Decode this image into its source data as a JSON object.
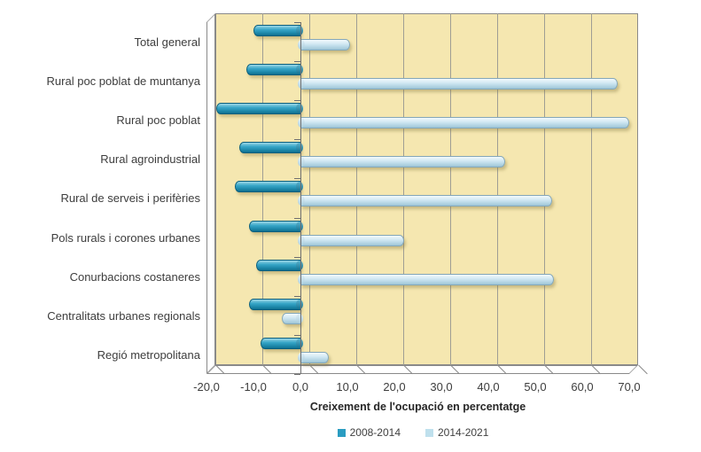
{
  "chart_data": {
    "type": "bar",
    "orientation": "horizontal",
    "style_3d": "cylinder",
    "title": "",
    "xlabel": "Creixement de l'ocupació en percentatge",
    "ylabel": "",
    "xlim": [
      -20,
      70
    ],
    "grid": true,
    "legend_position": "bottom",
    "plot_bg_color": "#F5E7B0",
    "grid_color": "#9f9e94",
    "frame_color": "#8a8a8a",
    "axis_line_color": "#6f6f6f",
    "text_color": "#3d3d3d",
    "x_ticks": [
      -20,
      -10,
      0,
      10,
      20,
      30,
      40,
      50,
      60,
      70
    ],
    "x_tick_labels": [
      "-20,0",
      "-10,0",
      "0,0",
      "10,0",
      "20,0",
      "30,0",
      "40,0",
      "50,0",
      "60,0",
      "70,0"
    ],
    "categories": [
      "Total general",
      "Rural poc poblat de muntanya",
      "Rural poc poblat",
      "Rural agroindustrial",
      "Rural de serveis i perifèries",
      "Pols rurals i corones urbanes",
      "Conurbacions costaneres",
      "Centralitats urbanes regionals",
      "Regió metropolitana"
    ],
    "series": [
      {
        "name": "2008-2014",
        "values": [
          -10.0,
          -11.5,
          -18.0,
          -13.0,
          -14.0,
          -11.0,
          -9.5,
          -11.0,
          -8.5
        ],
        "color": "#2A9CC1",
        "gradient_top": "#9ad6e6",
        "gradient_mid": "#37a6c8",
        "gradient_low": "#1b86a7",
        "gradient_bottom": "#0f6f90",
        "border_color": "#0b5f7d",
        "cap_top": "#5cb4cf",
        "cap_bottom": "#0f6f90"
      },
      {
        "name": "2014-2021",
        "values": [
          10.5,
          67.5,
          70.0,
          43.5,
          53.5,
          22.0,
          54.0,
          -4.0,
          6.0
        ],
        "color": "#BFE0ED",
        "gradient_top": "#f2f9fc",
        "gradient_mid": "#d3e9f3",
        "gradient_low": "#b2d4e3",
        "gradient_bottom": "#9dc4d6",
        "border_color": "#84a7b8",
        "cap_top": "#e0eff7",
        "cap_bottom": "#a9cddd"
      }
    ]
  }
}
